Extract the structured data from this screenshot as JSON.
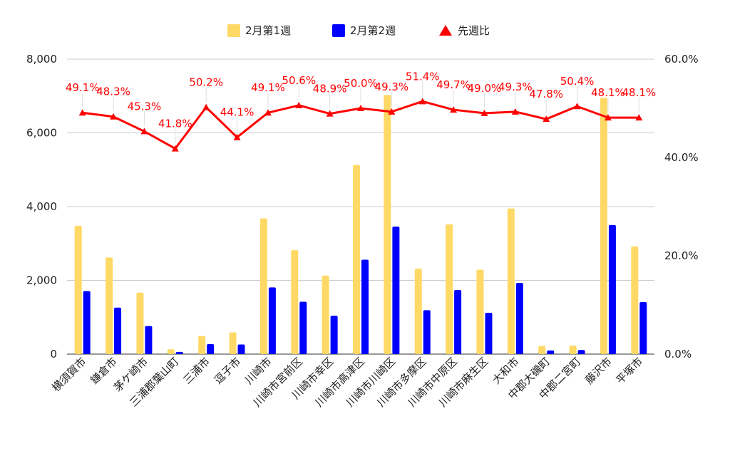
{
  "chart_data": {
    "type": "bar",
    "categories": [
      "横須賀市",
      "鎌倉市",
      "茅ケ崎市",
      "三浦郡葉山町",
      "三浦市",
      "逗子市",
      "川崎市",
      "川崎市宮前区",
      "川崎市幸区",
      "川崎市高津区",
      "川崎市川崎区",
      "川崎市多摩区",
      "川崎市中原区",
      "川崎市麻生区",
      "大和市",
      "中郡大磯町",
      "中郡二宮町",
      "藤沢市",
      "平塚市"
    ],
    "series": [
      {
        "name": "2月第1週",
        "type": "bar",
        "axis": "left",
        "color": "#FFD966",
        "values": [
          3480,
          2620,
          1670,
          130,
          490,
          590,
          3680,
          2820,
          2130,
          5130,
          7030,
          2320,
          3520,
          2290,
          3950,
          220,
          230,
          6950,
          2920
        ]
      },
      {
        "name": "2月第2週",
        "type": "bar",
        "axis": "left",
        "color": "#0000FF",
        "values": [
          1710,
          1260,
          760,
          60,
          270,
          260,
          1810,
          1420,
          1040,
          2560,
          3460,
          1190,
          1740,
          1120,
          1930,
          100,
          110,
          3500,
          1410
        ]
      },
      {
        "name": "先週比",
        "type": "line",
        "axis": "right",
        "color": "#FF0000",
        "values": [
          49.1,
          48.3,
          45.3,
          41.8,
          50.2,
          44.1,
          49.1,
          50.6,
          48.9,
          50.0,
          49.3,
          51.4,
          49.7,
          49.0,
          49.3,
          47.8,
          50.4,
          48.1,
          48.1
        ],
        "labels": [
          "49.1%",
          "48.3%",
          "45.3%",
          "41.8%",
          "50.2%",
          "44.1%",
          "49.1%",
          "50.6%",
          "48.9%",
          "50.0%",
          "49.3%",
          "51.4%",
          "49.7%",
          "49.0%",
          "49.3%",
          "47.8%",
          "50.4%",
          "48.1%",
          "48.1%"
        ]
      }
    ],
    "y_left": {
      "lim": [
        0,
        8000
      ],
      "ticks": [
        0,
        2000,
        4000,
        6000,
        8000
      ],
      "tick_labels": [
        "0",
        "2,000",
        "4,000",
        "6,000",
        "8,000"
      ]
    },
    "y_right": {
      "lim": [
        0,
        60
      ],
      "ticks": [
        0,
        20,
        40,
        60
      ],
      "tick_labels": [
        "0.0%",
        "20.0%",
        "40.0%",
        "60.0%"
      ]
    },
    "grid": true,
    "legend_position": "top-center",
    "title": "",
    "xlabel": "",
    "ylabel": ""
  }
}
